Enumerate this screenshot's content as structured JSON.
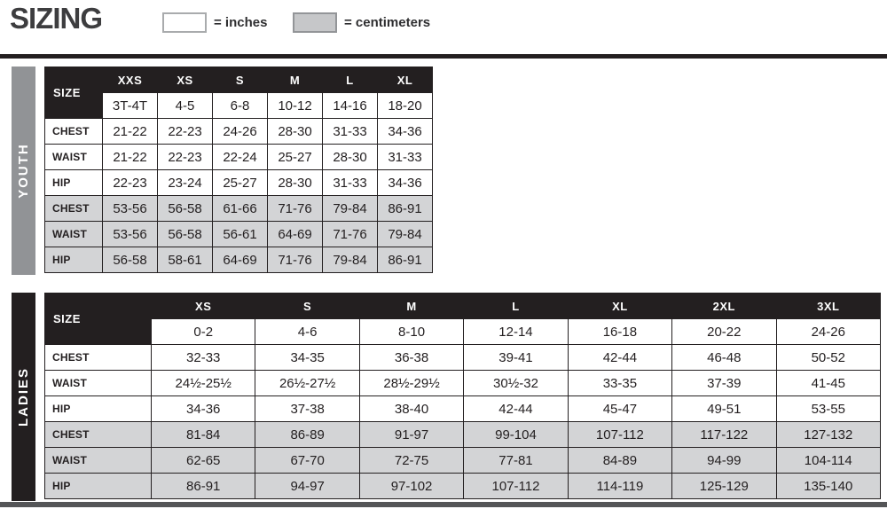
{
  "title": "SIZING",
  "legend": {
    "inches_label": "= inches",
    "cm_label": "= centimeters",
    "inches_swatch_color": "#ffffff",
    "cm_swatch_color": "#c6c7c9"
  },
  "colors": {
    "table_black": "#231f20",
    "cm_row_gray": "#d3d4d6",
    "youth_bar_gray": "#919396",
    "ladies_bar_black": "#231f20",
    "bottom_rule_gray": "#545557"
  },
  "youth": {
    "section_label": "YOUTH",
    "size_header": "SIZE",
    "sizes": [
      "XXS",
      "XS",
      "S",
      "M",
      "L",
      "XL"
    ],
    "ranges": [
      "3T-4T",
      "4-5",
      "6-8",
      "10-12",
      "14-16",
      "18-20"
    ],
    "in": [
      {
        "label": "CHEST",
        "v": [
          "21-22",
          "22-23",
          "24-26",
          "28-30",
          "31-33",
          "34-36"
        ]
      },
      {
        "label": "WAIST",
        "v": [
          "21-22",
          "22-23",
          "22-24",
          "25-27",
          "28-30",
          "31-33"
        ]
      },
      {
        "label": "HIP",
        "v": [
          "22-23",
          "23-24",
          "25-27",
          "28-30",
          "31-33",
          "34-36"
        ]
      }
    ],
    "cm": [
      {
        "label": "CHEST",
        "v": [
          "53-56",
          "56-58",
          "61-66",
          "71-76",
          "79-84",
          "86-91"
        ]
      },
      {
        "label": "WAIST",
        "v": [
          "53-56",
          "56-58",
          "56-61",
          "64-69",
          "71-76",
          "79-84"
        ]
      },
      {
        "label": "HIP",
        "v": [
          "56-58",
          "58-61",
          "64-69",
          "71-76",
          "79-84",
          "86-91"
        ]
      }
    ]
  },
  "ladies": {
    "section_label": "LADIES",
    "size_header": "SIZE",
    "sizes": [
      "XS",
      "S",
      "M",
      "L",
      "XL",
      "2XL",
      "3XL"
    ],
    "ranges": [
      "0-2",
      "4-6",
      "8-10",
      "12-14",
      "16-18",
      "20-22",
      "24-26"
    ],
    "in": [
      {
        "label": "CHEST",
        "v": [
          "32-33",
          "34-35",
          "36-38",
          "39-41",
          "42-44",
          "46-48",
          "50-52"
        ]
      },
      {
        "label": "WAIST",
        "v": [
          "24½-25½",
          "26½-27½",
          "28½-29½",
          "30½-32",
          "33-35",
          "37-39",
          "41-45"
        ]
      },
      {
        "label": "HIP",
        "v": [
          "34-36",
          "37-38",
          "38-40",
          "42-44",
          "45-47",
          "49-51",
          "53-55"
        ]
      }
    ],
    "cm": [
      {
        "label": "CHEST",
        "v": [
          "81-84",
          "86-89",
          "91-97",
          "99-104",
          "107-112",
          "117-122",
          "127-132"
        ]
      },
      {
        "label": "WAIST",
        "v": [
          "62-65",
          "67-70",
          "72-75",
          "77-81",
          "84-89",
          "94-99",
          "104-114"
        ]
      },
      {
        "label": "HIP",
        "v": [
          "86-91",
          "94-97",
          "97-102",
          "107-112",
          "114-119",
          "125-129",
          "135-140"
        ]
      }
    ]
  }
}
